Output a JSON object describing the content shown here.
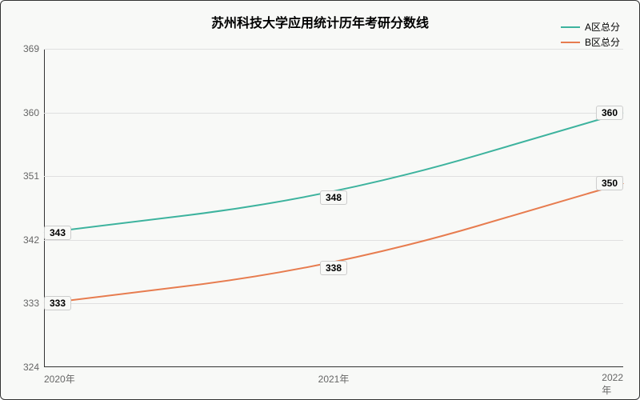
{
  "chart": {
    "type": "line",
    "title": "苏州科技大学应用统计历年考研分数线",
    "title_fontsize": 16,
    "background_color": "#f8f9f7",
    "border_color": "#333333",
    "grid_color": "#e0e0e0",
    "label_fontsize": 12,
    "axis_label_color": "#666666",
    "xlim": [
      2020,
      2022
    ],
    "ylim": [
      324,
      369
    ],
    "ytick_step": 9,
    "yticks": [
      324,
      333,
      342,
      351,
      360,
      369
    ],
    "x_categories": [
      "2020年",
      "2021年",
      "2022年"
    ],
    "x_values": [
      2020,
      2021,
      2022
    ],
    "series": [
      {
        "name": "A区总分",
        "color": "#3db39e",
        "line_width": 2,
        "values": [
          343,
          348,
          360
        ],
        "smooth": true
      },
      {
        "name": "B区总分",
        "color": "#e77c4f",
        "line_width": 2,
        "values": [
          333,
          338,
          350
        ],
        "smooth": true
      }
    ],
    "legend_position": "top-right",
    "point_label_bg": "#f8f9f7",
    "point_label_border": "#cccccc"
  }
}
